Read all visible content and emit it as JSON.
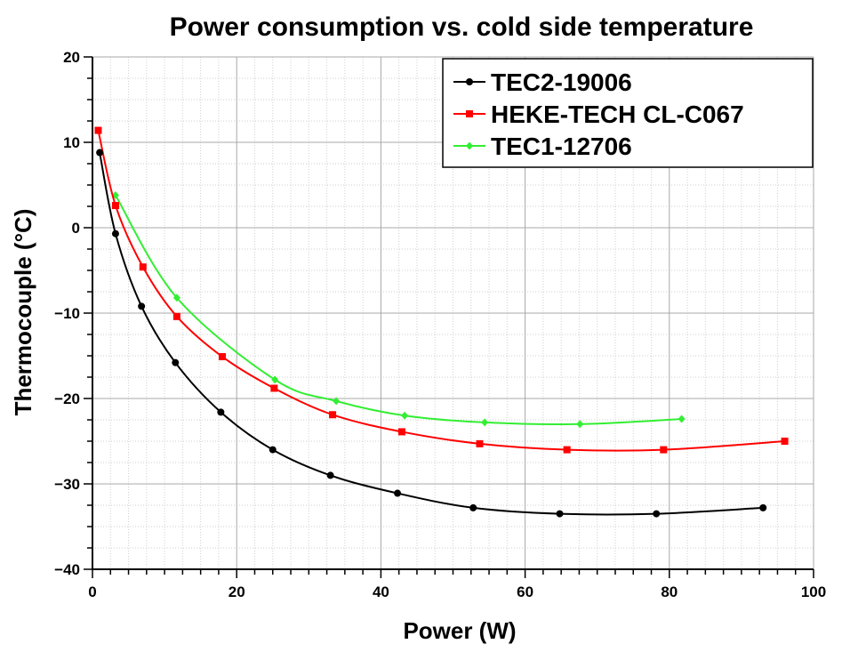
{
  "chart_data": {
    "type": "line",
    "title": "Power consumption vs. cold side temperature",
    "xlabel": "Power (W)",
    "ylabel": "Thermocouple (°C)",
    "xlim": [
      0,
      100
    ],
    "ylim": [
      -40,
      20
    ],
    "xticks": [
      0,
      20,
      40,
      60,
      80,
      100
    ],
    "yticks": [
      -40,
      -30,
      -20,
      -10,
      0,
      10,
      20
    ],
    "grid": true,
    "legend_position": "top-right",
    "series": [
      {
        "name": "TEC2-19006",
        "color": "#000000",
        "marker": "circle",
        "points": [
          [
            1,
            8.8
          ],
          [
            3.2,
            -0.7
          ],
          [
            6.8,
            -9.2
          ],
          [
            11.5,
            -15.8
          ],
          [
            17.8,
            -21.6
          ],
          [
            25,
            -26
          ],
          [
            33,
            -29
          ],
          [
            42.3,
            -31.1
          ],
          [
            52.8,
            -32.8
          ],
          [
            64.8,
            -33.5
          ],
          [
            78.2,
            -33.5
          ],
          [
            93,
            -32.8
          ]
        ]
      },
      {
        "name": "HEKE-TECH CL-C067",
        "color": "#ff0000",
        "marker": "square",
        "points": [
          [
            0.8,
            11.4
          ],
          [
            3.2,
            2.6
          ],
          [
            7,
            -4.6
          ],
          [
            11.7,
            -10.4
          ],
          [
            18,
            -15.1
          ],
          [
            25.2,
            -18.8
          ],
          [
            33.3,
            -21.9
          ],
          [
            42.9,
            -23.9
          ],
          [
            53.7,
            -25.3
          ],
          [
            65.8,
            -26
          ],
          [
            79.2,
            -26
          ],
          [
            96,
            -25
          ]
        ]
      },
      {
        "name": "TEC1-12706",
        "color": "#33ee33",
        "marker": "diamond",
        "points": [
          [
            3.2,
            3.8
          ],
          [
            11.7,
            -8.2
          ],
          [
            25.3,
            -17.8
          ],
          [
            33.8,
            -20.3
          ],
          [
            43.3,
            -22
          ],
          [
            54.4,
            -22.8
          ],
          [
            67.6,
            -23
          ],
          [
            81.7,
            -22.4
          ]
        ]
      }
    ]
  }
}
